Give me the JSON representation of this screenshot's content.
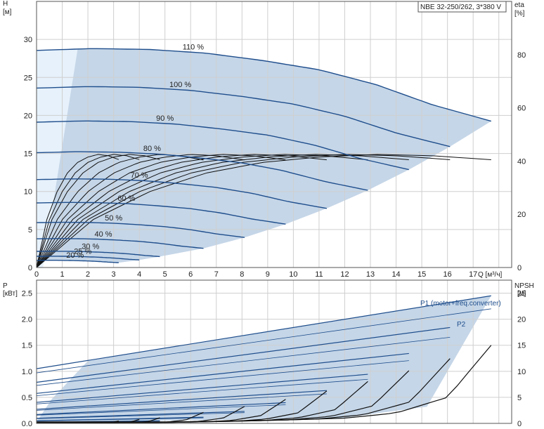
{
  "chart_data": [
    {
      "type": "line",
      "model_label": "NBE 32-250/262, 3*380 V",
      "xlabel": "Q [м³/ч]",
      "ylabel": "H",
      "ylabel_unit": "[м]",
      "y2label": "eta",
      "y2label_unit": "[%]",
      "xlim": [
        0,
        18.5
      ],
      "ylim": [
        0,
        35
      ],
      "y2lim": [
        0,
        100
      ],
      "x_ticks": [
        "0",
        "1",
        "2",
        "3",
        "4",
        "5",
        "6",
        "7",
        "8",
        "9",
        "10",
        "11",
        "12",
        "13",
        "14",
        "15",
        "16",
        "17"
      ],
      "y_ticks": [
        "0",
        "5",
        "10",
        "15",
        "20",
        "25",
        "30"
      ],
      "y2_ticks": [
        "0",
        "20",
        "40",
        "60",
        "80"
      ],
      "grid": true,
      "colors": {
        "head_curve": "#1f4e8c",
        "operating_area": "#c5d6e8",
        "area_left": "#e6f1fb",
        "eta_curve": "#111111"
      },
      "head_curves": [
        {
          "label": "110 %",
          "speed": 1.1,
          "q_max": 17.7
        },
        {
          "label": "100 %",
          "speed": 1.0,
          "q_max": 16.1
        },
        {
          "label": "90 %",
          "speed": 0.9,
          "q_max": 14.5
        },
        {
          "label": "80 %",
          "speed": 0.8,
          "q_max": 12.9
        },
        {
          "label": "70 %",
          "speed": 0.7,
          "q_max": 11.3
        },
        {
          "label": "60 %",
          "speed": 0.6,
          "q_max": 9.7
        },
        {
          "label": "50 %",
          "speed": 0.5,
          "q_max": 8.1
        },
        {
          "label": "40 %",
          "speed": 0.4,
          "q_max": 6.5
        },
        {
          "label": "30 %",
          "speed": 0.3,
          "q_max": 4.8
        },
        {
          "label": "25 %",
          "speed": 0.25,
          "q_max": 4.0
        },
        {
          "label": "20 %",
          "speed": 0.2,
          "q_max": 3.2
        }
      ],
      "head_reference_100": {
        "q": [
          0,
          2,
          4,
          6,
          8,
          10,
          12,
          14,
          16.1
        ],
        "h": [
          23.6,
          23.8,
          23.7,
          23.3,
          22.5,
          21.5,
          19.9,
          17.7,
          15.9
        ]
      },
      "eta_reference_100": {
        "q": [
          0,
          2,
          4,
          6,
          8,
          10,
          12,
          14,
          16.1
        ],
        "eta": [
          0,
          18,
          28.5,
          35.5,
          39.5,
          41.5,
          42.5,
          42,
          40.5
        ]
      }
    },
    {
      "type": "line",
      "xlabel": "",
      "ylabel": "P",
      "ylabel_unit": "[кВт]",
      "y2label": "NPSH",
      "y2label_unit": "[м]",
      "xlim": [
        0,
        18.5
      ],
      "ylim": [
        0,
        2.75
      ],
      "y2lim": [
        0,
        27.5
      ],
      "y_ticks": [
        "0.0",
        "0.5",
        "1.0",
        "1.5",
        "2.0",
        "2.5"
      ],
      "y2_ticks": [
        "0",
        "5",
        "10",
        "15",
        "20",
        "25"
      ],
      "grid": true,
      "series_labels": [
        "P1 (motor+freq.converter)",
        "P2"
      ],
      "colors": {
        "power_curve": "#1f4e8c",
        "npsh_curve": "#111111"
      },
      "power_p1_110": {
        "q": [
          0,
          17.7
        ],
        "p": [
          1.05,
          2.45
        ]
      },
      "power_p2_110": {
        "q": [
          0,
          17.7
        ],
        "p": [
          0.97,
          2.2
        ]
      },
      "npsh_reference_110": {
        "q": [
          5.8,
          8,
          10,
          12,
          14,
          16,
          17.7
        ],
        "npsh": [
          0.3,
          0.5,
          0.7,
          1.0,
          2.0,
          5.0,
          15.0
        ]
      }
    }
  ]
}
